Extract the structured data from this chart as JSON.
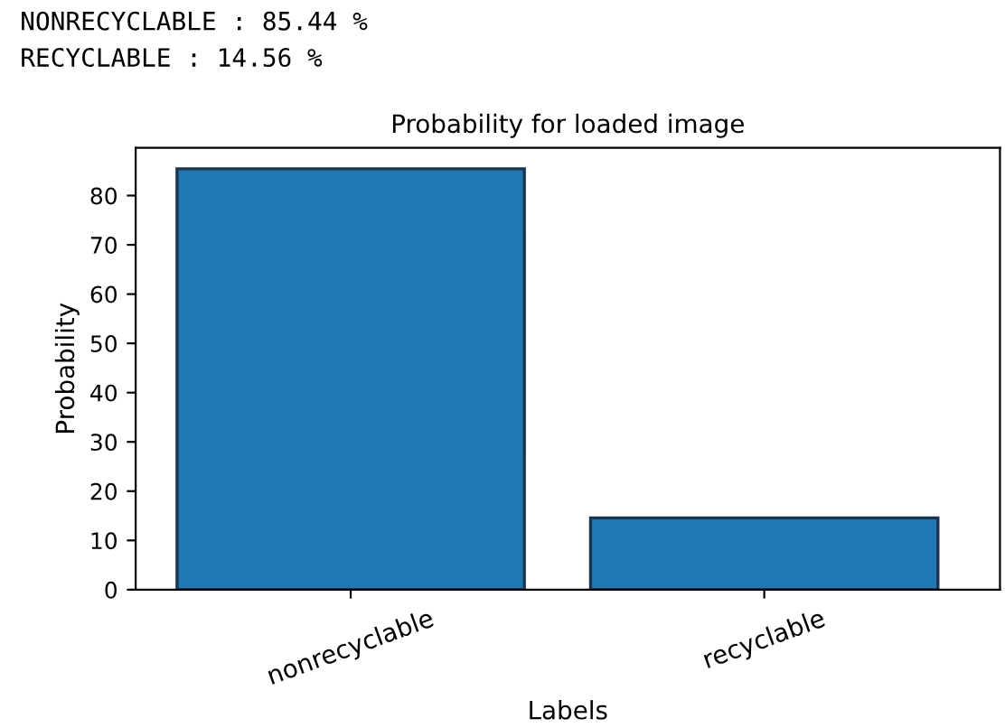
{
  "chart_data": {
    "type": "bar",
    "title": "Probability for loaded image",
    "xlabel": "Labels",
    "ylabel": "Probability",
    "categories": [
      "nonrecyclable",
      "recyclable"
    ],
    "values": [
      85.44,
      14.56
    ],
    "color": "#1f77b4",
    "ylim": [
      0,
      89.7
    ],
    "yticks": [
      0,
      10,
      20,
      30,
      40,
      50,
      60,
      70,
      80
    ],
    "annotations": [
      "NONRECYCLABLE : 85.44 %",
      "RECYCLABLE : 14.56 %"
    ]
  }
}
